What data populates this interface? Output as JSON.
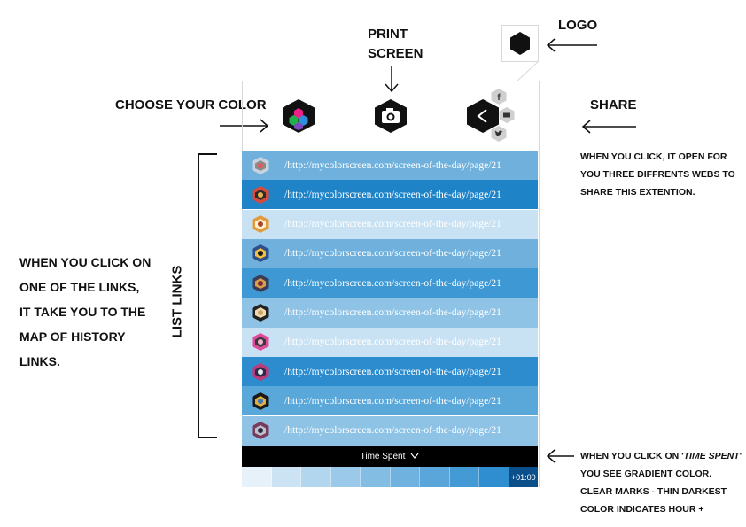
{
  "annotations": {
    "logo": "LOGO",
    "print_screen_line1": "PRINT",
    "print_screen_line2": "SCREEN",
    "choose_color": "CHOOSE YOUR COLOR",
    "share": "SHARE",
    "share_note_lines": [
      "WHEN YOU CLICK, IT OPEN FOR",
      "YOU THREE DIFFRENTS WEBS TO",
      "SHARE THIS EXTENTION."
    ],
    "list_links": "LIST LINKS",
    "links_note_lines": [
      "WHEN YOU CLICK ON",
      "ONE OF THE LINKS,",
      "IT TAKE YOU TO THE",
      "MAP OF HISTORY",
      "LINKS."
    ],
    "time_note_line1_pre": "WHEN YOU CLICK ON '",
    "time_note_line1_em": "TIME SPENT",
    "time_note_line1_post": "'",
    "time_note_lines": [
      "YOU SEE GRADIENT COLOR.",
      "CLEAR MARKS - THIN DARKEST",
      "COLOR INDICATES HOUR +"
    ]
  },
  "toolbar": {
    "color_icon": "color-palette-hex-icon",
    "camera_icon": "camera-hex-icon",
    "share_icon": "share-hex-icon",
    "social": [
      "facebook-icon",
      "email-icon",
      "twitter-icon"
    ],
    "facebook_glyph": "f"
  },
  "links": [
    {
      "url": "/http://mycolorscreen.com/screen-of-the-day/page/21",
      "bg": "#6fb1dc"
    },
    {
      "url": "/http://mycolorscreen.com/screen-of-the-day/page/21",
      "bg": "#1f83c8"
    },
    {
      "url": "/http://mycolorscreen.com/screen-of-the-day/page/21",
      "bg": "#c9e2f3"
    },
    {
      "url": "/http://mycolorscreen.com/screen-of-the-day/page/21",
      "bg": "#6fb1dc"
    },
    {
      "url": "/http://mycolorscreen.com/screen-of-the-day/page/21",
      "bg": "#3d98d3"
    },
    {
      "url": "/http://mycolorscreen.com/screen-of-the-day/page/21",
      "bg": "#8ec3e6"
    },
    {
      "url": "/http://mycolorscreen.com/screen-of-the-day/page/21",
      "bg": "#c9e2f3"
    },
    {
      "url": "/http://mycolorscreen.com/screen-of-the-day/page/21",
      "bg": "#2c8cce"
    },
    {
      "url": "/http://mycolorscreen.com/screen-of-the-day/page/21",
      "bg": "#5aa7da"
    },
    {
      "url": "/http://mycolorscreen.com/screen-of-the-day/page/21",
      "bg": "#8ec3e6"
    }
  ],
  "time_spent": {
    "label": "Time Spent",
    "hour_label": "+01:00",
    "gradient": [
      "#e6f1fa",
      "#cce3f4",
      "#b3d6ef",
      "#9ac9ea",
      "#84bde4",
      "#6fb1df",
      "#5aa5da",
      "#439ad5",
      "#2e8ecf"
    ]
  }
}
